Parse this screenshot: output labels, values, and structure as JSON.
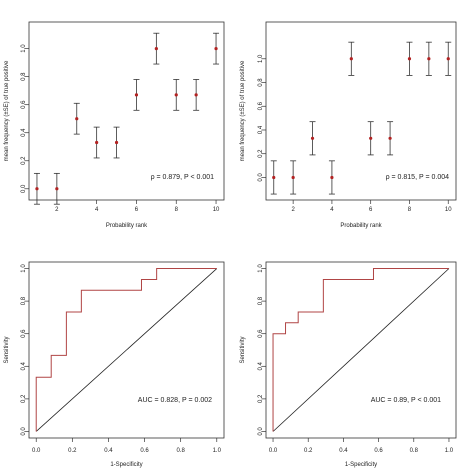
{
  "chart_data": [
    {
      "type": "scatter",
      "id": "top-left",
      "xlabel": "Probability rank",
      "ylabel": "mean frequency (±SE) of true positive",
      "xlim": [
        0.6,
        10.4
      ],
      "ylim": [
        -0.08,
        1.19
      ],
      "xticks": [
        "2",
        "4",
        "6",
        "8",
        "10"
      ],
      "yticks": [
        "0.0",
        "0.2",
        "0.4",
        "0.6",
        "0.8",
        "1.0"
      ],
      "annotation": "ρ = 0.879, P < 0.001",
      "points": [
        {
          "x": 1,
          "y": 0.0,
          "lo": -0.11,
          "hi": 0.11
        },
        {
          "x": 2,
          "y": 0.0,
          "lo": -0.11,
          "hi": 0.11
        },
        {
          "x": 3,
          "y": 0.5,
          "lo": 0.39,
          "hi": 0.61
        },
        {
          "x": 4,
          "y": 0.33,
          "lo": 0.22,
          "hi": 0.44
        },
        {
          "x": 5,
          "y": 0.33,
          "lo": 0.22,
          "hi": 0.44
        },
        {
          "x": 6,
          "y": 0.67,
          "lo": 0.56,
          "hi": 0.78
        },
        {
          "x": 7,
          "y": 1.0,
          "lo": 0.89,
          "hi": 1.11
        },
        {
          "x": 8,
          "y": 0.67,
          "lo": 0.56,
          "hi": 0.78
        },
        {
          "x": 9,
          "y": 0.67,
          "lo": 0.56,
          "hi": 0.78
        },
        {
          "x": 10,
          "y": 1.0,
          "lo": 0.89,
          "hi": 1.11
        }
      ]
    },
    {
      "type": "scatter",
      "id": "top-right",
      "xlabel": "Probability rank",
      "ylabel": "mean frequency (±SE) of true positive",
      "xlim": [
        0.6,
        10.4
      ],
      "ylim": [
        -0.19,
        1.31
      ],
      "xticks": [
        "2",
        "4",
        "6",
        "8",
        "10"
      ],
      "yticks": [
        "0.0",
        "0.2",
        "0.4",
        "0.6",
        "0.8",
        "1.0"
      ],
      "annotation": "ρ = 0.815, P = 0.004",
      "points": [
        {
          "x": 1,
          "y": 0.0,
          "lo": -0.14,
          "hi": 0.14
        },
        {
          "x": 2,
          "y": 0.0,
          "lo": -0.14,
          "hi": 0.14
        },
        {
          "x": 3,
          "y": 0.33,
          "lo": 0.19,
          "hi": 0.47
        },
        {
          "x": 4,
          "y": 0.0,
          "lo": -0.14,
          "hi": 0.14
        },
        {
          "x": 5,
          "y": 1.0,
          "lo": 0.86,
          "hi": 1.14
        },
        {
          "x": 6,
          "y": 0.33,
          "lo": 0.19,
          "hi": 0.47
        },
        {
          "x": 7,
          "y": 0.33,
          "lo": 0.19,
          "hi": 0.47
        },
        {
          "x": 8,
          "y": 1.0,
          "lo": 0.86,
          "hi": 1.14
        },
        {
          "x": 9,
          "y": 1.0,
          "lo": 0.86,
          "hi": 1.14
        },
        {
          "x": 10,
          "y": 1.0,
          "lo": 0.86,
          "hi": 1.14
        }
      ]
    },
    {
      "type": "line",
      "id": "bottom-left",
      "xlabel": "1-Specificity",
      "ylabel": "Sensitivity",
      "xlim": [
        -0.04,
        1.04
      ],
      "ylim": [
        -0.04,
        1.04
      ],
      "xticks": [
        "0.0",
        "0.2",
        "0.4",
        "0.6",
        "0.8",
        "1.0"
      ],
      "yticks": [
        "0.0",
        "0.2",
        "0.4",
        "0.6",
        "0.8",
        "1.0"
      ],
      "annotation": "AUC = 0.828, P = 0.002",
      "roc": [
        [
          0,
          0
        ],
        [
          0,
          0.333
        ],
        [
          0.083,
          0.333
        ],
        [
          0.083,
          0.467
        ],
        [
          0.167,
          0.467
        ],
        [
          0.167,
          0.733
        ],
        [
          0.25,
          0.733
        ],
        [
          0.25,
          0.867
        ],
        [
          0.583,
          0.867
        ],
        [
          0.583,
          0.933
        ],
        [
          0.667,
          0.933
        ],
        [
          0.667,
          1.0
        ],
        [
          1.0,
          1.0
        ]
      ],
      "diagonal": [
        [
          0,
          0
        ],
        [
          1,
          1
        ]
      ]
    },
    {
      "type": "line",
      "id": "bottom-right",
      "xlabel": "1-Specificity",
      "ylabel": "Sensitivity",
      "xlim": [
        -0.04,
        1.04
      ],
      "ylim": [
        -0.04,
        1.04
      ],
      "xticks": [
        "0.0",
        "0.2",
        "0.4",
        "0.6",
        "0.8",
        "1.0"
      ],
      "yticks": [
        "0.0",
        "0.2",
        "0.4",
        "0.6",
        "0.8",
        "1.0"
      ],
      "annotation": "AUC = 0.89, P < 0.001",
      "roc": [
        [
          0,
          0
        ],
        [
          0,
          0.6
        ],
        [
          0.071,
          0.6
        ],
        [
          0.071,
          0.667
        ],
        [
          0.143,
          0.667
        ],
        [
          0.143,
          0.733
        ],
        [
          0.286,
          0.733
        ],
        [
          0.286,
          0.933
        ],
        [
          0.571,
          0.933
        ],
        [
          0.571,
          1.0
        ],
        [
          1.0,
          1.0
        ]
      ],
      "diagonal": [
        [
          0,
          0
        ],
        [
          1,
          1
        ]
      ]
    }
  ],
  "colors": {
    "point": "#b22222",
    "roc": "#b04545",
    "axis": "#333333",
    "diagonal": "#222222"
  }
}
